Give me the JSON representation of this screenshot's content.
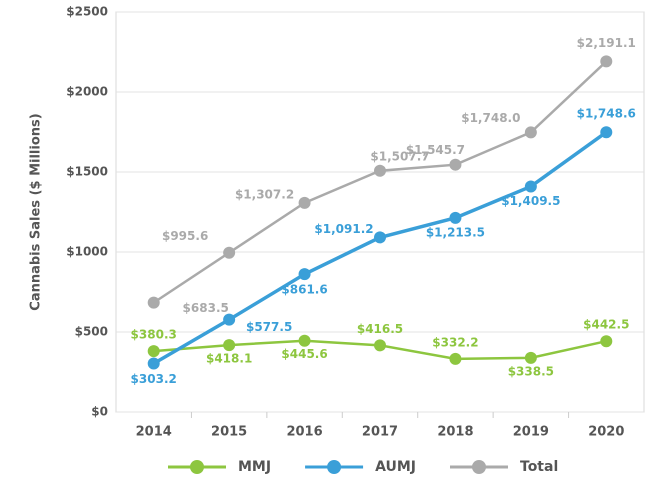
{
  "chart_data": {
    "type": "line",
    "y_label": "Cannabis Sales ($ Millions)",
    "categories": [
      "2014",
      "2015",
      "2016",
      "2017",
      "2018",
      "2019",
      "2020"
    ],
    "series": [
      {
        "name": "MMJ",
        "color": "#8dc63f",
        "values": [
          380.3,
          418.1,
          445.6,
          416.5,
          332.2,
          338.5,
          442.5
        ],
        "value_labels": [
          "$380.3",
          "$418.1",
          "$445.6",
          "$416.5",
          "$332.2",
          "$338.5",
          "$442.5"
        ]
      },
      {
        "name": "AUMJ",
        "color": "#3a9fd8",
        "values": [
          303.2,
          577.5,
          861.6,
          1091.2,
          1213.5,
          1409.5,
          1748.6
        ],
        "value_labels": [
          "$303.2",
          "$577.5",
          "$861.6",
          "$1,091.2",
          "$1,213.5",
          "$1,409.5",
          "$1,748.6"
        ]
      },
      {
        "name": "Total",
        "color": "#aaaaaa",
        "values": [
          683.5,
          995.6,
          1307.2,
          1507.7,
          1545.7,
          1748.0,
          2191.1
        ],
        "value_labels": [
          "$683.5",
          "$995.6",
          "$1,307.2",
          "$1,507.7",
          "$1,545.7",
          "$1,748.0",
          "$2,191.1"
        ]
      }
    ],
    "ylim": [
      0,
      2500
    ],
    "yticks": [
      {
        "value": 0,
        "label": "$0"
      },
      {
        "value": 500,
        "label": "$500"
      },
      {
        "value": 1000,
        "label": "$1000"
      },
      {
        "value": 1500,
        "label": "$1500"
      },
      {
        "value": 2000,
        "label": "$2000"
      },
      {
        "value": 2500,
        "label": "$2500"
      }
    ],
    "grid": true,
    "legend": "bottom"
  }
}
